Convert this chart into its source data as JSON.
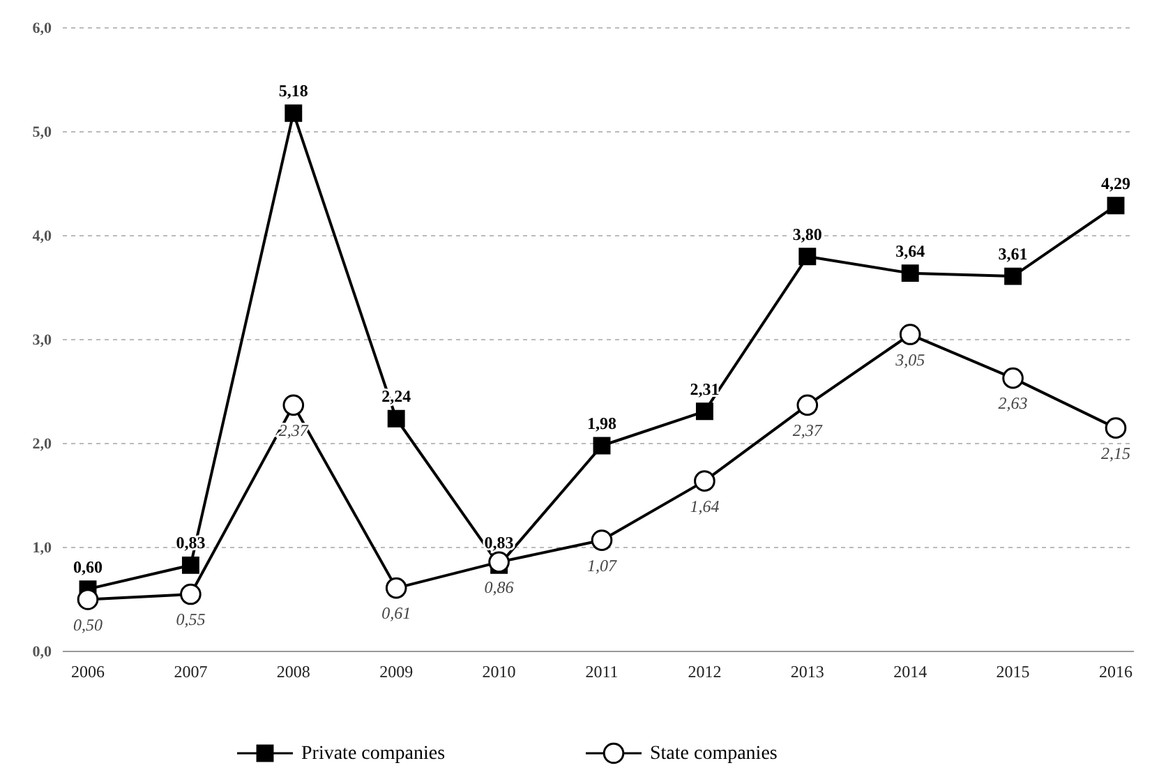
{
  "chart_data": {
    "type": "line",
    "categories": [
      "2006",
      "2007",
      "2008",
      "2009",
      "2010",
      "2011",
      "2012",
      "2013",
      "2014",
      "2015",
      "2016"
    ],
    "series": [
      {
        "name": "Private companies",
        "color": "#000000",
        "marker": "square",
        "values": [
          0.6,
          0.83,
          5.18,
          2.24,
          0.83,
          1.98,
          2.31,
          3.8,
          3.64,
          3.61,
          4.29
        ],
        "value_labels": [
          "0,60",
          "0,83",
          "5,18",
          "2,24",
          "0,83",
          "1,98",
          "2,31",
          "3,80",
          "3,64",
          "3,61",
          "4,29"
        ]
      },
      {
        "name": "State companies",
        "color": "#000000",
        "marker": "circle",
        "values": [
          0.5,
          0.55,
          2.37,
          0.61,
          0.86,
          1.07,
          1.64,
          2.37,
          3.05,
          2.63,
          2.15
        ],
        "value_labels": [
          "0,50",
          "0,55",
          "2,37",
          "0,61",
          "0,86",
          "1,07",
          "1,64",
          "2,37",
          "3,05",
          "2,63",
          "2,15"
        ]
      }
    ],
    "ylim": [
      0,
      6
    ],
    "yticks": [
      {
        "value": 0,
        "label": "0,0"
      },
      {
        "value": 1,
        "label": "1,0"
      },
      {
        "value": 2,
        "label": "2,0"
      },
      {
        "value": 3,
        "label": "3,0"
      },
      {
        "value": 4,
        "label": "4,0"
      },
      {
        "value": 5,
        "label": "5,0"
      },
      {
        "value": 6,
        "label": "6,0"
      }
    ],
    "grid": "y",
    "legend": "bottom",
    "line_style": "solid"
  }
}
